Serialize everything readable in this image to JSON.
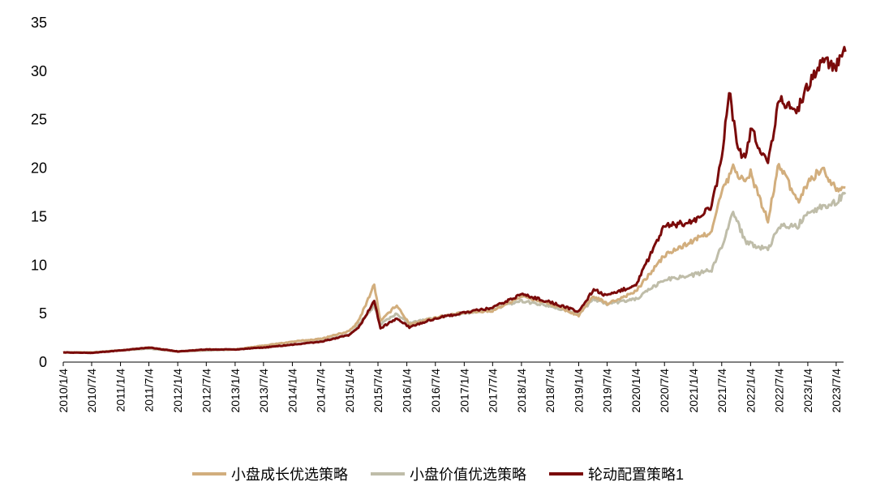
{
  "chart_data": {
    "type": "line",
    "title": "",
    "xlabel": "",
    "ylabel": "",
    "ylim": [
      0,
      35
    ],
    "yticks": [
      "0",
      "5",
      "10",
      "15",
      "20",
      "25",
      "30",
      "35"
    ],
    "x_tick_labels": [
      "2010/1/4",
      "2010/7/4",
      "2011/1/4",
      "2011/7/4",
      "2012/1/4",
      "2012/7/4",
      "2013/1/4",
      "2013/7/4",
      "2014/1/4",
      "2014/7/4",
      "2015/1/4",
      "2015/7/4",
      "2016/1/4",
      "2016/7/4",
      "2017/1/4",
      "2017/7/4",
      "2018/1/4",
      "2018/7/4",
      "2019/1/4",
      "2019/7/4",
      "2020/1/4",
      "2020/7/4",
      "2021/1/4",
      "2021/7/4",
      "2022/1/4",
      "2022/7/4",
      "2023/1/4",
      "2023/7/4"
    ],
    "grid": false,
    "legend_position": "bottom",
    "series": [
      {
        "name": "小盘成长优选策略",
        "color": "#D2AE7D",
        "points": [
          [
            "2010-01-04",
            1.0
          ],
          [
            "2010-07-04",
            1.0
          ],
          [
            "2011-01-04",
            1.2
          ],
          [
            "2011-07-04",
            1.5
          ],
          [
            "2012-01-04",
            1.1
          ],
          [
            "2012-07-04",
            1.3
          ],
          [
            "2013-01-04",
            1.3
          ],
          [
            "2013-07-04",
            1.7
          ],
          [
            "2014-01-04",
            2.1
          ],
          [
            "2014-07-04",
            2.4
          ],
          [
            "2015-01-04",
            3.2
          ],
          [
            "2015-03-01",
            4.2
          ],
          [
            "2015-06-10",
            8.0
          ],
          [
            "2015-07-20",
            4.2
          ],
          [
            "2015-11-01",
            5.9
          ],
          [
            "2016-01-20",
            3.9
          ],
          [
            "2016-07-04",
            4.6
          ],
          [
            "2017-01-04",
            5.1
          ],
          [
            "2017-07-04",
            5.3
          ],
          [
            "2018-01-04",
            6.8
          ],
          [
            "2018-07-04",
            6.0
          ],
          [
            "2019-01-04",
            4.8
          ],
          [
            "2019-04-10",
            6.8
          ],
          [
            "2019-07-04",
            6.0
          ],
          [
            "2020-01-04",
            7.3
          ],
          [
            "2020-07-04",
            11.0
          ],
          [
            "2021-01-04",
            12.5
          ],
          [
            "2021-05-01",
            13.5
          ],
          [
            "2021-07-04",
            17.5
          ],
          [
            "2021-09-15",
            20.0
          ],
          [
            "2021-12-01",
            18.5
          ],
          [
            "2022-01-04",
            19.5
          ],
          [
            "2022-04-25",
            14.5
          ],
          [
            "2022-07-04",
            20.5
          ],
          [
            "2022-10-31",
            16.5
          ],
          [
            "2023-01-04",
            18.5
          ],
          [
            "2023-04-01",
            20.0
          ],
          [
            "2023-07-04",
            18.0
          ],
          [
            "2023-09-01",
            18.0
          ]
        ]
      },
      {
        "name": "小盘价值优选策略",
        "color": "#BFBDA9",
        "points": [
          [
            "2010-01-04",
            1.0
          ],
          [
            "2010-07-04",
            1.0
          ],
          [
            "2011-01-04",
            1.2
          ],
          [
            "2011-07-04",
            1.4
          ],
          [
            "2012-01-04",
            1.1
          ],
          [
            "2012-07-04",
            1.2
          ],
          [
            "2013-01-04",
            1.3
          ],
          [
            "2013-07-04",
            1.5
          ],
          [
            "2014-01-04",
            1.8
          ],
          [
            "2014-07-04",
            2.2
          ],
          [
            "2015-01-04",
            2.8
          ],
          [
            "2015-06-10",
            5.8
          ],
          [
            "2015-07-20",
            3.9
          ],
          [
            "2015-11-01",
            5.0
          ],
          [
            "2016-01-20",
            4.0
          ],
          [
            "2016-07-04",
            4.6
          ],
          [
            "2017-01-04",
            5.0
          ],
          [
            "2017-07-04",
            5.5
          ],
          [
            "2018-01-04",
            6.3
          ],
          [
            "2018-07-04",
            5.8
          ],
          [
            "2019-01-04",
            5.0
          ],
          [
            "2019-04-10",
            6.5
          ],
          [
            "2019-07-04",
            6.0
          ],
          [
            "2020-01-04",
            6.5
          ],
          [
            "2020-07-04",
            8.5
          ],
          [
            "2021-01-04",
            9.0
          ],
          [
            "2021-05-01",
            9.5
          ],
          [
            "2021-07-04",
            12.0
          ],
          [
            "2021-09-15",
            15.5
          ],
          [
            "2021-12-01",
            12.5
          ],
          [
            "2022-04-25",
            11.5
          ],
          [
            "2022-07-04",
            14.0
          ],
          [
            "2022-10-31",
            14.0
          ],
          [
            "2023-01-04",
            15.5
          ],
          [
            "2023-07-04",
            16.5
          ],
          [
            "2023-09-01",
            17.5
          ]
        ]
      },
      {
        "name": "轮动配置策略1",
        "color": "#7A0A0A",
        "points": [
          [
            "2010-01-04",
            1.0
          ],
          [
            "2010-07-04",
            0.95
          ],
          [
            "2011-01-04",
            1.2
          ],
          [
            "2011-07-04",
            1.5
          ],
          [
            "2012-01-04",
            1.1
          ],
          [
            "2012-07-04",
            1.3
          ],
          [
            "2013-01-04",
            1.3
          ],
          [
            "2013-07-04",
            1.5
          ],
          [
            "2014-01-04",
            1.8
          ],
          [
            "2014-07-04",
            2.1
          ],
          [
            "2015-01-04",
            2.8
          ],
          [
            "2015-03-01",
            3.5
          ],
          [
            "2015-06-10",
            6.3
          ],
          [
            "2015-07-20",
            3.5
          ],
          [
            "2015-11-01",
            4.5
          ],
          [
            "2016-01-20",
            3.6
          ],
          [
            "2016-07-04",
            4.5
          ],
          [
            "2017-01-04",
            5.1
          ],
          [
            "2017-07-04",
            5.6
          ],
          [
            "2018-01-04",
            7.0
          ],
          [
            "2018-07-04",
            6.2
          ],
          [
            "2019-01-04",
            5.2
          ],
          [
            "2019-04-10",
            7.5
          ],
          [
            "2019-07-04",
            6.8
          ],
          [
            "2020-01-04",
            8.0
          ],
          [
            "2020-07-04",
            14.0
          ],
          [
            "2021-01-04",
            14.5
          ],
          [
            "2021-05-01",
            16.0
          ],
          [
            "2021-07-04",
            21.0
          ],
          [
            "2021-08-20",
            28.0
          ],
          [
            "2021-10-15",
            22.0
          ],
          [
            "2021-12-01",
            21.0
          ],
          [
            "2022-01-04",
            24.0
          ],
          [
            "2022-04-25",
            20.5
          ],
          [
            "2022-07-04",
            27.0
          ],
          [
            "2022-10-31",
            26.0
          ],
          [
            "2023-01-04",
            28.5
          ],
          [
            "2023-04-01",
            31.0
          ],
          [
            "2023-07-04",
            30.5
          ],
          [
            "2023-09-01",
            32.0
          ]
        ]
      }
    ]
  }
}
